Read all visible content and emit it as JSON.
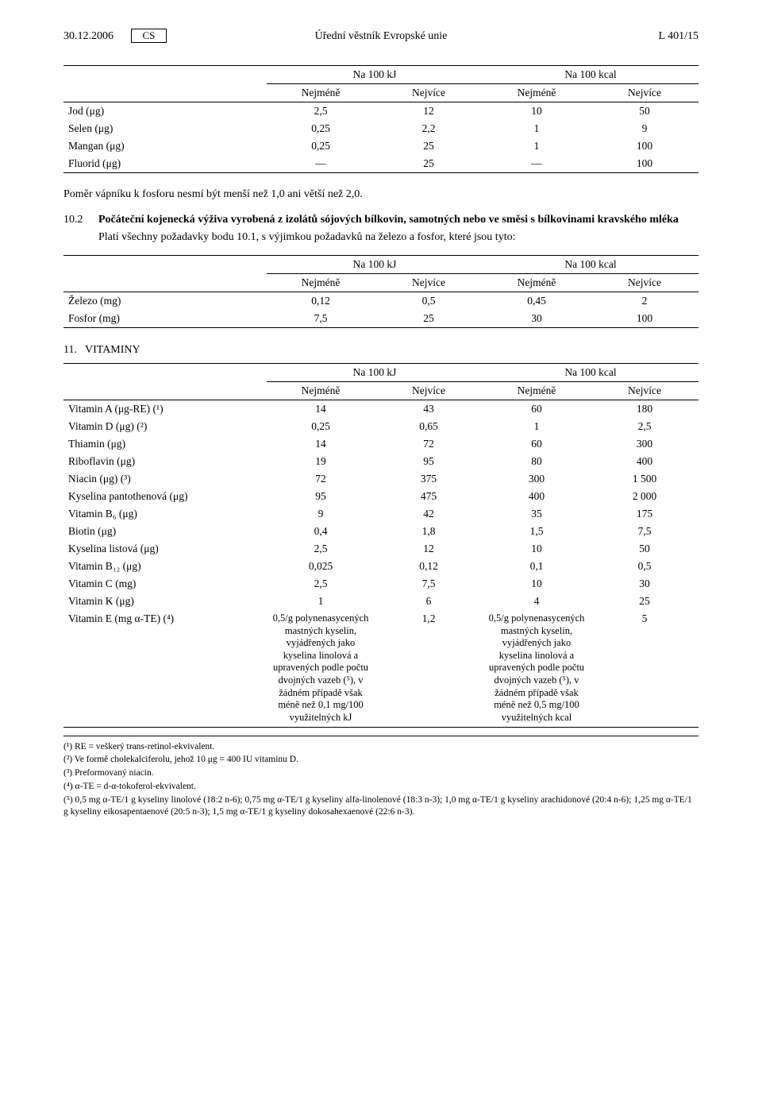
{
  "header": {
    "date": "30.12.2006",
    "lang": "CS",
    "journal": "Úřední věstník Evropské unie",
    "pageref": "L 401/15"
  },
  "t1": {
    "group_kj": "Na 100 kJ",
    "group_kcal": "Na 100 kcal",
    "h_min": "Nejméně",
    "h_max": "Nejvíce",
    "rows": [
      {
        "label": "Jod (μg)",
        "a": "2,5",
        "b": "12",
        "c": "10",
        "d": "50"
      },
      {
        "label": "Selen (μg)",
        "a": "0,25",
        "b": "2,2",
        "c": "1",
        "d": "9"
      },
      {
        "label": "Mangan (μg)",
        "a": "0,25",
        "b": "25",
        "c": "1",
        "d": "100"
      },
      {
        "label": "Fluorid (μg)",
        "a": "—",
        "b": "25",
        "c": "—",
        "d": "100"
      }
    ]
  },
  "para_ratio": "Poměr vápníku k fosforu nesmí být menší než 1,0 ani větší než 2,0.",
  "sec102": {
    "num": "10.2",
    "title": "Počáteční kojenecká výživa vyrobená z izolátů sójových bílkovin, samotných nebo ve směsi s bílkovinami kravského mléka",
    "body": "Platí všechny požadavky bodu 10.1, s výjimkou požadavků na železo a fosfor, které jsou tyto:"
  },
  "t2": {
    "group_kj": "Na 100 kJ",
    "group_kcal": "Na 100 kcal",
    "h_min": "Nejméně",
    "h_max": "Nejvíce",
    "rows": [
      {
        "label": "Železo (mg)",
        "a": "0,12",
        "b": "0,5",
        "c": "0,45",
        "d": "2"
      },
      {
        "label": "Fosfor (mg)",
        "a": "7,5",
        "b": "25",
        "c": "30",
        "d": "100"
      }
    ]
  },
  "sec11": {
    "num": "11.",
    "title": "VITAMINY"
  },
  "t3": {
    "group_kj": "Na 100 kJ",
    "group_kcal": "Na 100 kcal",
    "h_min": "Nejméně",
    "h_max": "Nejvíce",
    "rows": [
      {
        "label": "Vitamin A (μg-RE) (¹)",
        "a": "14",
        "b": "43",
        "c": "60",
        "d": "180"
      },
      {
        "label": "Vitamin D (μg) (²)",
        "a": "0,25",
        "b": "0,65",
        "c": "1",
        "d": "2,5"
      },
      {
        "label": "Thiamin (μg)",
        "a": "14",
        "b": "72",
        "c": "60",
        "d": "300"
      },
      {
        "label": "Riboflavin (μg)",
        "a": "19",
        "b": "95",
        "c": "80",
        "d": "400"
      },
      {
        "label": "Niacin (μg) (³)",
        "a": "72",
        "b": "375",
        "c": "300",
        "d": "1 500"
      },
      {
        "label": "Kyselina pantothenová (μg)",
        "a": "95",
        "b": "475",
        "c": "400",
        "d": "2 000"
      },
      {
        "label": "Vitamin B₆ (μg)",
        "a": "9",
        "b": "42",
        "c": "35",
        "d": "175"
      },
      {
        "label": "Biotin (μg)",
        "a": "0,4",
        "b": "1,8",
        "c": "1,5",
        "d": "7,5"
      },
      {
        "label": "Kyselina listová (μg)",
        "a": "2,5",
        "b": "12",
        "c": "10",
        "d": "50"
      },
      {
        "label": "Vitamin B₁₂ (μg)",
        "a": "0,025",
        "b": "0,12",
        "c": "0,1",
        "d": "0,5"
      },
      {
        "label": "Vitamin C (mg)",
        "a": "2,5",
        "b": "7,5",
        "c": "10",
        "d": "30"
      },
      {
        "label": "Vitamin K (μg)",
        "a": "1",
        "b": "6",
        "c": "4",
        "d": "25"
      }
    ],
    "vitE": {
      "label": "Vitamin E (mg α-TE) (⁴)",
      "a": "0,5/g polynenasycených mastných kyselin, vyjádřených jako kyselina linolová a upravených podle počtu dvojných vazeb (⁵), v žádném případě však méně než 0,1 mg/100 využitelných kJ",
      "b": "1,2",
      "c": "0,5/g polynenasycených mastných kyselin, vyjádřených jako kyselina linolová a upravených podle počtu dvojných vazeb (⁵), v žádném případě však méně než 0,5 mg/100 využitelných kcal",
      "d": "5"
    }
  },
  "footnotes": {
    "f1": "(¹) RE = veškerý trans-retinol-ekvivalent.",
    "f2": "(²) Ve formě cholekalciferolu, jehož 10 μg = 400 IU vitaminu D.",
    "f3": "(³) Preformovaný niacin.",
    "f4": "(⁴) α-TE = d-α-tokoferol-ekvivalent.",
    "f5": "(⁵) 0,5 mg α-TE/1 g kyseliny linolové (18:2 n-6); 0,75 mg α-TE/1 g kyseliny alfa-linolenové (18:3 n-3); 1,0 mg α-TE/1 g kyseliny arachidonové (20:4 n-6); 1,25 mg α-TE/1 g kyseliny eikosapentaenové (20:5 n-3); 1,5 mg α-TE/1 g kyseliny dokosahexaenové (22:6 n-3)."
  }
}
